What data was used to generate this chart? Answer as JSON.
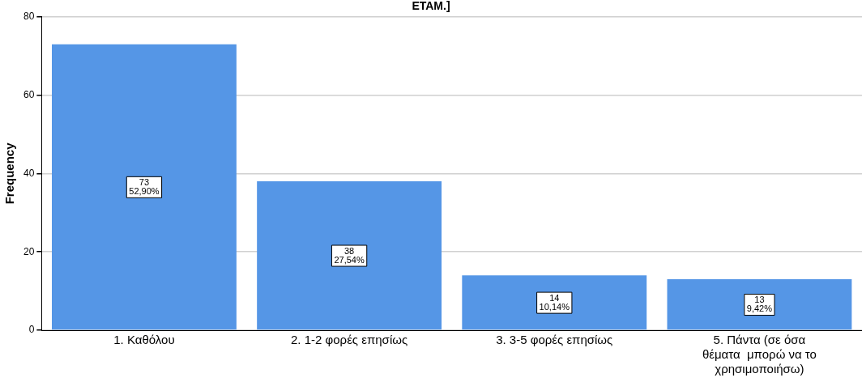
{
  "chart_data": {
    "type": "bar",
    "title": "ΕΤΑΜ.]",
    "ylabel": "Frequency",
    "categories": [
      "1. Καθόλου",
      "2. 1-2 φορές επησίως",
      "3. 3-5 φορές επησίως",
      "5. Πάντα (σε όσα θέματα  μπορώ να το χρησιμοποιήσω)"
    ],
    "values": [
      73,
      38,
      14,
      13
    ],
    "value_labels": [
      "73\n52,90%",
      "38\n27,54%",
      "14\n10,14%",
      "13\n9,42%"
    ],
    "color": "#5596e6",
    "ylim": [
      0,
      80
    ],
    "yticks": [
      0,
      20,
      40,
      60,
      80
    ],
    "grid": "y",
    "legend": false
  }
}
